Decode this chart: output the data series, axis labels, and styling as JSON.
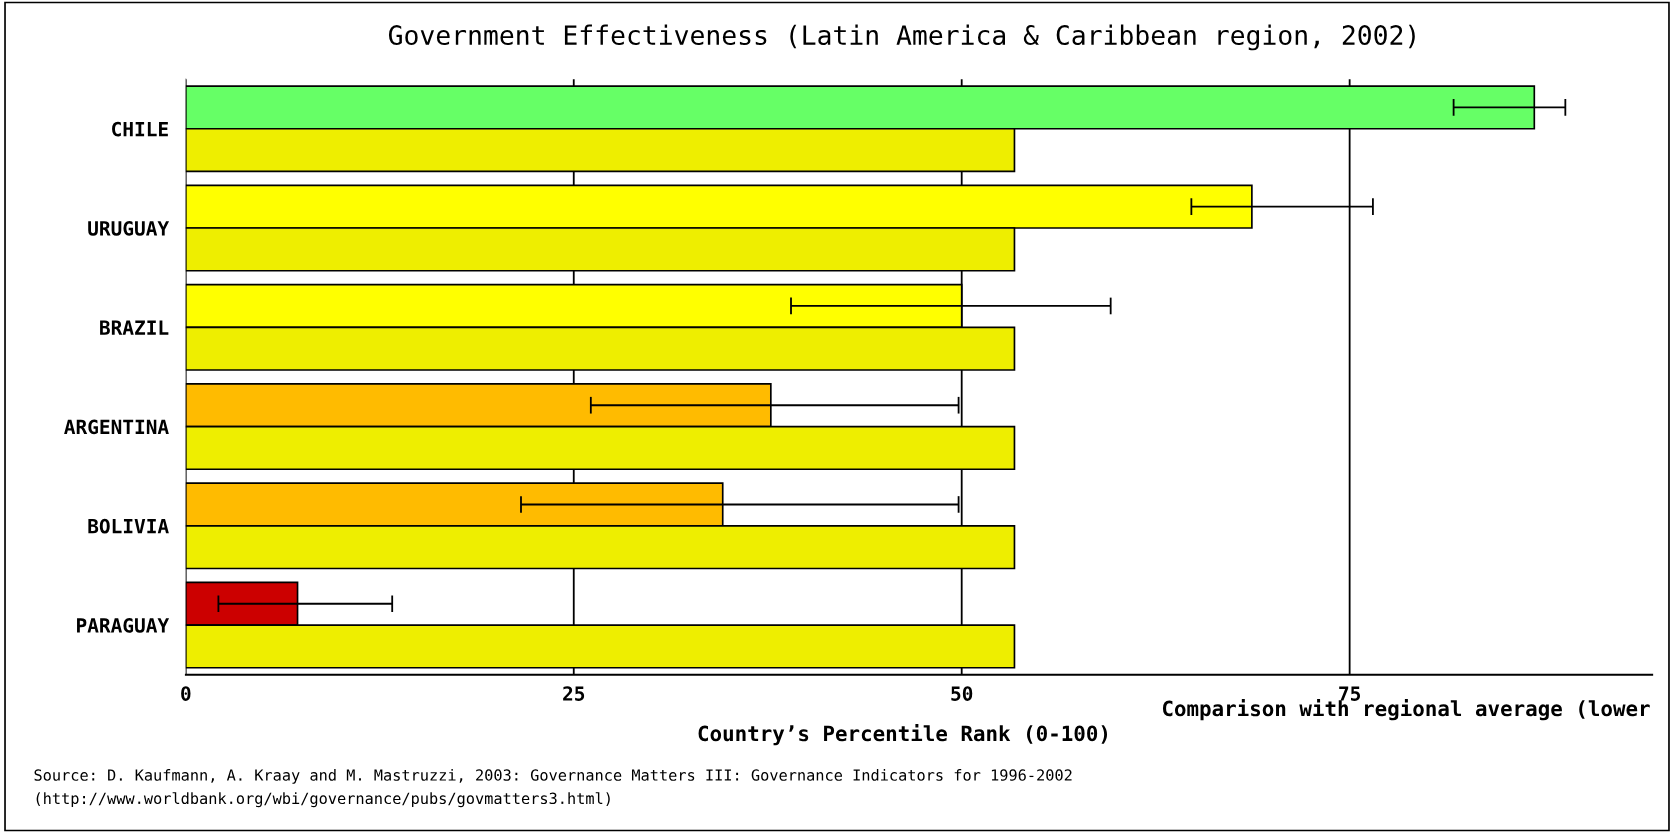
{
  "chart_data": {
    "type": "bar",
    "orientation": "horizontal",
    "title": "Government Effectiveness (Latin America & Caribbean region, 2002)",
    "xlabel": "Country’s Percentile Rank (0-100)",
    "categories": [
      "CHILE",
      "URUGUAY",
      "BRAZIL",
      "ARGENTINA",
      "BOLIVIA",
      "PARAGUAY"
    ],
    "series": [
      {
        "colors": [
          "#66ff66",
          "#ffff00",
          "#ffff00",
          "#ffbb00",
          "#ffbb00",
          "#cc0000"
        ],
        "values": [
          86.9,
          68.7,
          50.0,
          37.7,
          34.6,
          7.2
        ],
        "errors": [
          [
            81.7,
            88.9
          ],
          [
            64.8,
            76.5
          ],
          [
            39.0,
            59.6
          ],
          [
            26.1,
            49.8
          ],
          [
            21.6,
            49.8
          ],
          [
            2.1,
            13.3
          ]
        ]
      },
      {
        "color": "#eeee00",
        "values": [
          53.4,
          53.4,
          53.4,
          53.4,
          53.4,
          53.4
        ]
      }
    ],
    "xlim": [
      0,
      94.5
    ],
    "xticks": [
      0,
      25,
      50,
      75
    ],
    "grid": "x",
    "legend": false,
    "annotations": [
      "Comparison with regional average (lower",
      "Source: D. Kaufmann, A. Kraay and M. Mastruzzi, 2003: Governance Matters III: Governance Indicators for 1996-2002",
      "(http://www.worldbank.org/wbi/governance/pubs/govmatters3.html)"
    ]
  }
}
